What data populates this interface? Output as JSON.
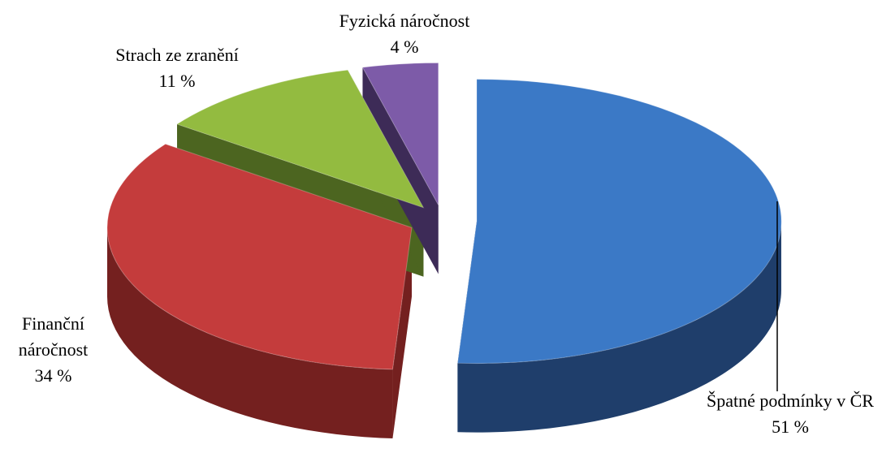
{
  "chart_data": {
    "type": "pie3d",
    "categories": [
      "Špatné podmínky v ČR",
      "Finanční náročnost",
      "Strach ze zranění",
      "Fyzická náročnost"
    ],
    "values": [
      51,
      34,
      11,
      4
    ],
    "value_labels": [
      "51 %",
      "34 %",
      "11 %",
      "4 %"
    ],
    "colors": [
      "#3b79c6",
      "#c43c3c",
      "#93bb40",
      "#7d5ba8"
    ],
    "side_colors": [
      "#1f3e6b",
      "#74201f",
      "#4c6520",
      "#3d2b57"
    ]
  }
}
